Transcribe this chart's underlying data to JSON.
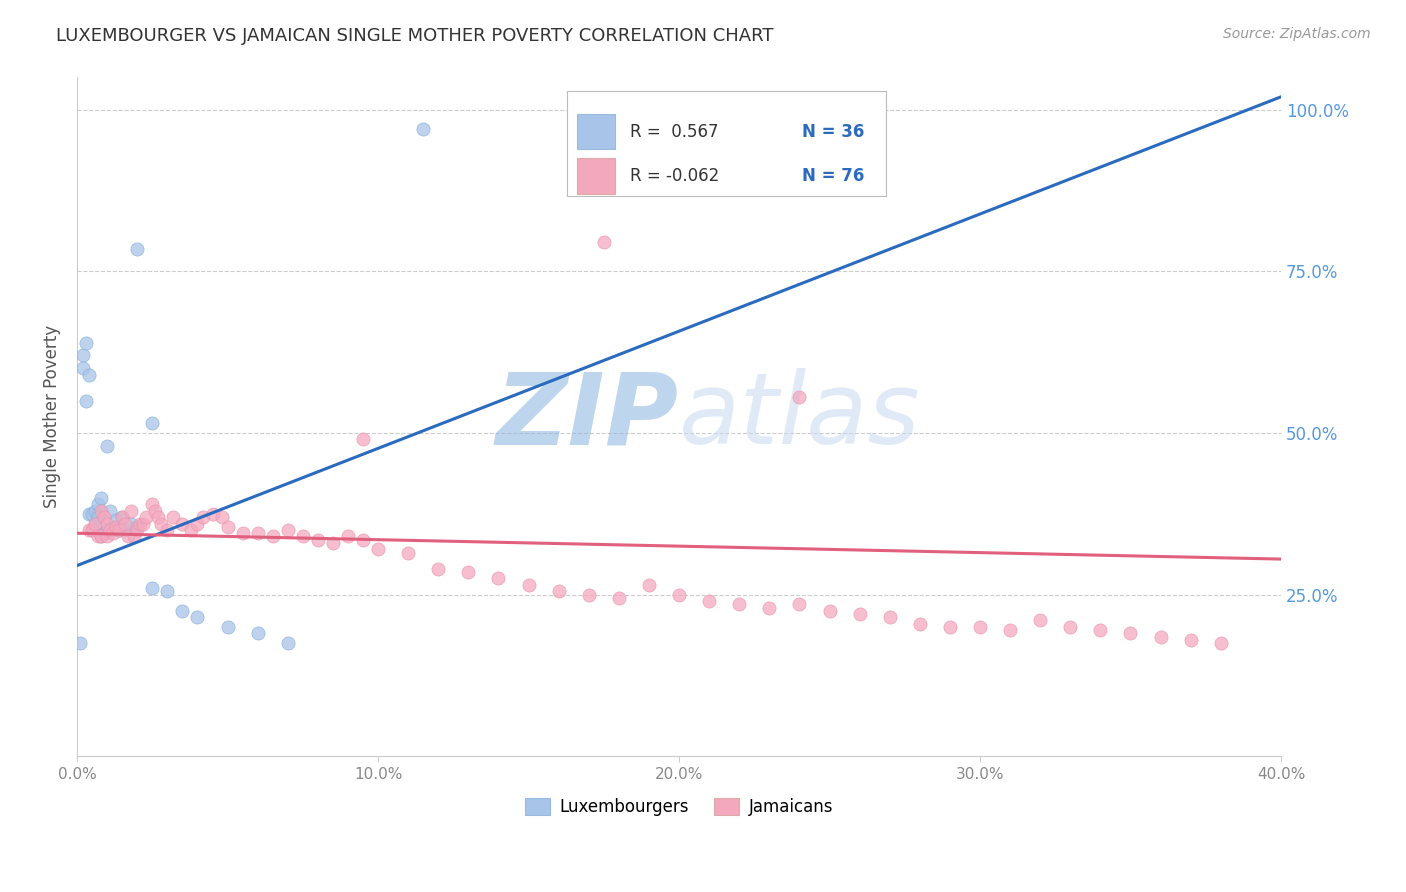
{
  "title": "LUXEMBOURGER VS JAMAICAN SINGLE MOTHER POVERTY CORRELATION CHART",
  "source": "Source: ZipAtlas.com",
  "ylabel": "Single Mother Poverty",
  "xlim": [
    0.0,
    0.4
  ],
  "ylim": [
    0.0,
    1.05
  ],
  "lux_R": 0.567,
  "lux_N": 36,
  "jam_R": -0.062,
  "jam_N": 76,
  "lux_color": "#a8c4e8",
  "jam_color": "#f4a8be",
  "lux_line_color": "#2b6bbf",
  "jam_line_color": "#e0607e",
  "watermark_color": "#cddff5",
  "lux_x": [
    0.001,
    0.002,
    0.002,
    0.003,
    0.003,
    0.004,
    0.004,
    0.005,
    0.005,
    0.006,
    0.006,
    0.007,
    0.007,
    0.008,
    0.008,
    0.009,
    0.01,
    0.01,
    0.011,
    0.012,
    0.013,
    0.014,
    0.015,
    0.016,
    0.018,
    0.02,
    0.025,
    0.03,
    0.035,
    0.04,
    0.05,
    0.06,
    0.07,
    0.02,
    0.025,
    0.115
  ],
  "lux_y": [
    0.175,
    0.62,
    0.6,
    0.64,
    0.55,
    0.59,
    0.375,
    0.375,
    0.35,
    0.36,
    0.38,
    0.39,
    0.37,
    0.4,
    0.34,
    0.345,
    0.35,
    0.48,
    0.38,
    0.355,
    0.365,
    0.35,
    0.37,
    0.35,
    0.36,
    0.355,
    0.26,
    0.255,
    0.225,
    0.215,
    0.2,
    0.19,
    0.175,
    0.785,
    0.515,
    0.97
  ],
  "jam_x": [
    0.004,
    0.005,
    0.006,
    0.007,
    0.008,
    0.008,
    0.009,
    0.01,
    0.01,
    0.011,
    0.012,
    0.013,
    0.014,
    0.015,
    0.016,
    0.017,
    0.018,
    0.019,
    0.02,
    0.021,
    0.022,
    0.023,
    0.025,
    0.026,
    0.027,
    0.028,
    0.03,
    0.032,
    0.035,
    0.038,
    0.04,
    0.042,
    0.045,
    0.048,
    0.05,
    0.055,
    0.06,
    0.065,
    0.07,
    0.075,
    0.08,
    0.085,
    0.09,
    0.095,
    0.1,
    0.11,
    0.12,
    0.13,
    0.14,
    0.15,
    0.16,
    0.17,
    0.18,
    0.19,
    0.2,
    0.21,
    0.22,
    0.23,
    0.24,
    0.25,
    0.26,
    0.27,
    0.28,
    0.29,
    0.3,
    0.31,
    0.32,
    0.33,
    0.34,
    0.35,
    0.36,
    0.37,
    0.38,
    0.095,
    0.175,
    0.24
  ],
  "jam_y": [
    0.35,
    0.35,
    0.36,
    0.34,
    0.38,
    0.34,
    0.37,
    0.36,
    0.34,
    0.35,
    0.345,
    0.355,
    0.35,
    0.37,
    0.36,
    0.34,
    0.38,
    0.34,
    0.35,
    0.36,
    0.36,
    0.37,
    0.39,
    0.38,
    0.37,
    0.36,
    0.35,
    0.37,
    0.36,
    0.35,
    0.36,
    0.37,
    0.375,
    0.37,
    0.355,
    0.345,
    0.345,
    0.34,
    0.35,
    0.34,
    0.335,
    0.33,
    0.34,
    0.335,
    0.32,
    0.315,
    0.29,
    0.285,
    0.275,
    0.265,
    0.255,
    0.25,
    0.245,
    0.265,
    0.25,
    0.24,
    0.235,
    0.23,
    0.235,
    0.225,
    0.22,
    0.215,
    0.205,
    0.2,
    0.2,
    0.195,
    0.21,
    0.2,
    0.195,
    0.19,
    0.185,
    0.18,
    0.175,
    0.49,
    0.795,
    0.555
  ],
  "lux_line_x0": 0.0,
  "lux_line_y0": 0.295,
  "lux_line_x1": 0.4,
  "lux_line_y1": 1.02,
  "jam_line_x0": 0.0,
  "jam_line_y0": 0.345,
  "jam_line_x1": 0.4,
  "jam_line_y1": 0.305
}
